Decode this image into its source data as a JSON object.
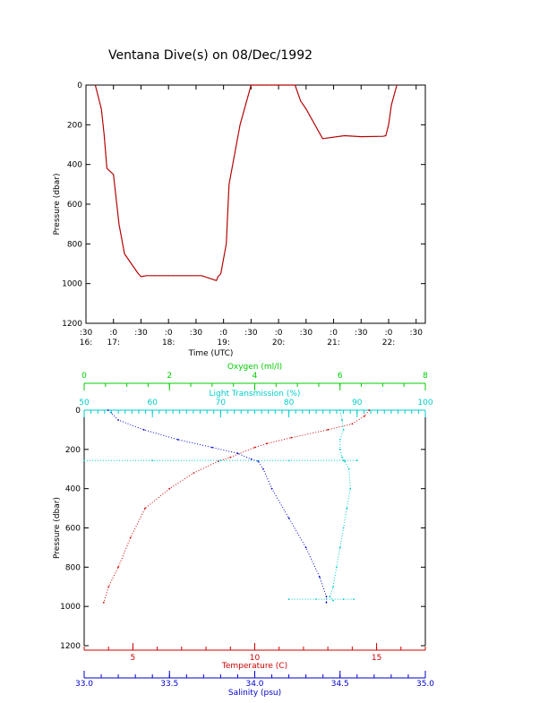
{
  "title": "Ventana Dive(s) on 08/Dec/1992",
  "chart_data": [
    {
      "type": "line",
      "xlabel": "Time (UTC)",
      "ylabel": "Pressure (dbar)",
      "xlim_hours": [
        16.5,
        22.667
      ],
      "ylim": [
        1200,
        0
      ],
      "yticks": [
        0,
        200,
        400,
        600,
        800,
        1000,
        1200
      ],
      "xticks_top": [
        ":30",
        ":0",
        ":30",
        ":0",
        ":30",
        ":0",
        ":30",
        ":0",
        ":30",
        ":0",
        ":30",
        ":0",
        ":30"
      ],
      "xticks_bottom": [
        "16:",
        "17:",
        "",
        "18:",
        "",
        "19:",
        "",
        "20:",
        "",
        "21:",
        "",
        "22:",
        ""
      ],
      "series": [
        {
          "color": "#cc0000",
          "x_hours": [
            16.67,
            16.78,
            16.83,
            16.88,
            17.0,
            17.1,
            17.2,
            17.45,
            17.5,
            17.6,
            17.8,
            17.95,
            18.1,
            18.35,
            18.6,
            18.87,
            18.9,
            18.95,
            19.05,
            19.1,
            19.3,
            19.5,
            19.55,
            19.75,
            19.95,
            20.0,
            20.2,
            20.25,
            20.3,
            20.4,
            20.5,
            20.8,
            21.2,
            21.5,
            21.9,
            21.95,
            22.0,
            22.05,
            22.15
          ],
          "y_dbar": [
            0,
            120,
            250,
            420,
            450,
            700,
            850,
            950,
            965,
            960,
            960,
            960,
            960,
            960,
            960,
            985,
            965,
            950,
            800,
            500,
            200,
            0,
            0,
            0,
            0,
            0,
            0,
            0,
            0,
            80,
            120,
            270,
            255,
            260,
            258,
            255,
            200,
            100,
            0
          ]
        }
      ]
    },
    {
      "type": "scatter",
      "ylabel": "Pressure (dbar)",
      "ylim": [
        1200,
        0
      ],
      "yticks": [
        0,
        200,
        400,
        600,
        800,
        1000,
        1200
      ],
      "axes": {
        "oxygen": {
          "label": "Oxygen (ml/l)",
          "range": [
            0,
            8
          ],
          "ticks": [
            "0",
            "2",
            "4",
            "6",
            "8"
          ],
          "color": "#00cc00"
        },
        "transmission": {
          "label": "Light Transmission (%)",
          "range": [
            50,
            100
          ],
          "ticks": [
            "50",
            "60",
            "70",
            "80",
            "90",
            "100"
          ],
          "color": "#00cccc"
        },
        "temperature": {
          "label": "Temperature (C)",
          "range": [
            3.0,
            17.0
          ],
          "ticks": [
            "5",
            "10",
            "15"
          ],
          "color": "#cc0000"
        },
        "salinity": {
          "label": "Salinity (psu)",
          "range": [
            33.0,
            35.0
          ],
          "ticks": [
            "33.0",
            "33.5",
            "34.0",
            "34.5",
            "35.0"
          ],
          "color": "#0000cc"
        }
      },
      "series": [
        {
          "axis": "temperature",
          "color": "#cc0000",
          "x": [
            14.7,
            14.5,
            14.0,
            13.0,
            11.5,
            10.5,
            10.0,
            9.0,
            8.5,
            7.5,
            6.5,
            5.5,
            4.9,
            4.4,
            4.0,
            3.8
          ],
          "y": [
            0,
            30,
            70,
            100,
            140,
            170,
            190,
            240,
            260,
            320,
            400,
            500,
            650,
            800,
            900,
            980
          ]
        },
        {
          "axis": "salinity",
          "color": "#0000cc",
          "x": [
            33.14,
            33.2,
            33.35,
            33.55,
            33.75,
            33.9,
            33.98,
            34.02,
            34.05,
            34.1,
            34.2,
            34.3,
            34.38,
            34.42,
            34.42
          ],
          "y": [
            0,
            50,
            100,
            150,
            190,
            220,
            250,
            260,
            300,
            400,
            550,
            700,
            850,
            950,
            980
          ]
        },
        {
          "axis": "transmission",
          "color": "#00cccc",
          "x": [
            87.5,
            87.8,
            88.0,
            87.5,
            87.5,
            87.8,
            88.2,
            88.8,
            89.0,
            88.5,
            88.0,
            87.5,
            87.0,
            86.5,
            86.0,
            86.5
          ],
          "y": [
            0,
            50,
            100,
            150,
            200,
            240,
            260,
            300,
            400,
            500,
            600,
            700,
            800,
            900,
            950,
            970
          ]
        },
        {
          "axis": "transmission",
          "color": "#00cccc",
          "x": [
            50.0,
            60.0,
            70.0,
            80.0,
            88.0,
            90.0
          ],
          "y": [
            257,
            257,
            256,
            257,
            256,
            256
          ]
        },
        {
          "axis": "transmission",
          "color": "#00cccc",
          "x": [
            80.0,
            84.0,
            88.0,
            89.5
          ],
          "y": [
            963,
            963,
            963,
            963
          ]
        }
      ]
    }
  ]
}
